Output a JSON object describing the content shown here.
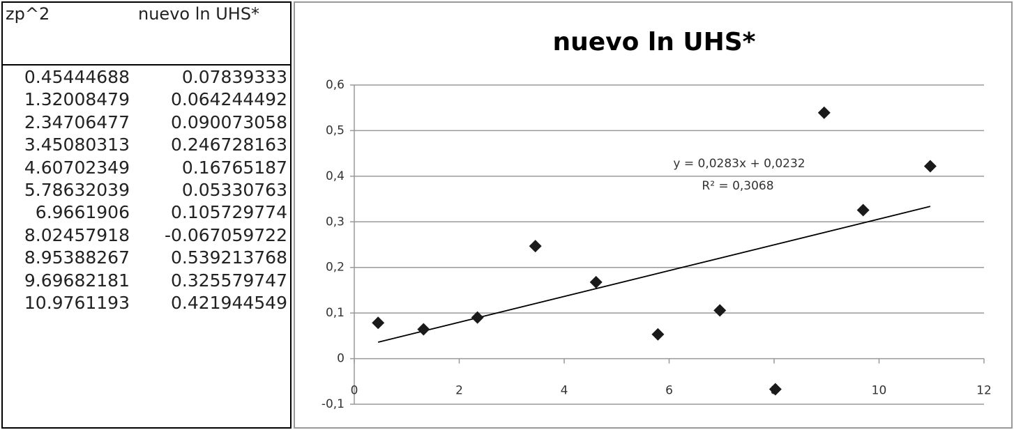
{
  "table": {
    "headers": [
      "zp^2",
      "nuevo ln UHS*"
    ],
    "rows": [
      [
        "0.45444688",
        "0.07839333"
      ],
      [
        "1.32008479",
        "0.064244492"
      ],
      [
        "2.34706477",
        "0.090073058"
      ],
      [
        "3.45080313",
        "0.246728163"
      ],
      [
        "4.60702349",
        "0.16765187"
      ],
      [
        "5.78632039",
        "0.05330763"
      ],
      [
        "6.9661906",
        "0.105729774"
      ],
      [
        "8.02457918",
        "-0.067059722"
      ],
      [
        "8.95388267",
        "0.539213768"
      ],
      [
        "9.69682181",
        "0.325579747"
      ],
      [
        "10.9761193",
        "0.421944549"
      ]
    ]
  },
  "chart_data": {
    "type": "scatter",
    "title": "nuevo ln UHS*",
    "x": [
      0.45444688,
      1.32008479,
      2.34706477,
      3.45080313,
      4.60702349,
      5.78632039,
      6.9661906,
      8.02457918,
      8.95388267,
      9.69682181,
      10.9761193
    ],
    "values": [
      0.07839333,
      0.064244492,
      0.090073058,
      0.246728163,
      0.16765187,
      0.05330763,
      0.105729774,
      -0.067059722,
      0.539213768,
      0.325579747,
      0.421944549
    ],
    "color": "#1a1a1a",
    "xlim": [
      0,
      12
    ],
    "ylim": [
      -0.1,
      0.6
    ],
    "xticks": [
      0,
      2,
      4,
      6,
      8,
      10,
      12
    ],
    "yticks": [
      {
        "value": -0.1,
        "label": "-0,1"
      },
      0,
      {
        "value": 0.1,
        "label": "0,1"
      },
      {
        "value": 0.2,
        "label": "0,2"
      },
      {
        "value": 0.3,
        "label": "0,3"
      },
      {
        "value": 0.4,
        "label": "0,4"
      },
      {
        "value": 0.5,
        "label": "0,5"
      },
      {
        "value": 0.6,
        "label": "0,6"
      }
    ],
    "grid": true,
    "trendline": {
      "slope": 0.0283,
      "intercept": 0.0232,
      "equation": "y = 0,0283x + 0,0232",
      "r2": "R² = 0,3068"
    }
  }
}
